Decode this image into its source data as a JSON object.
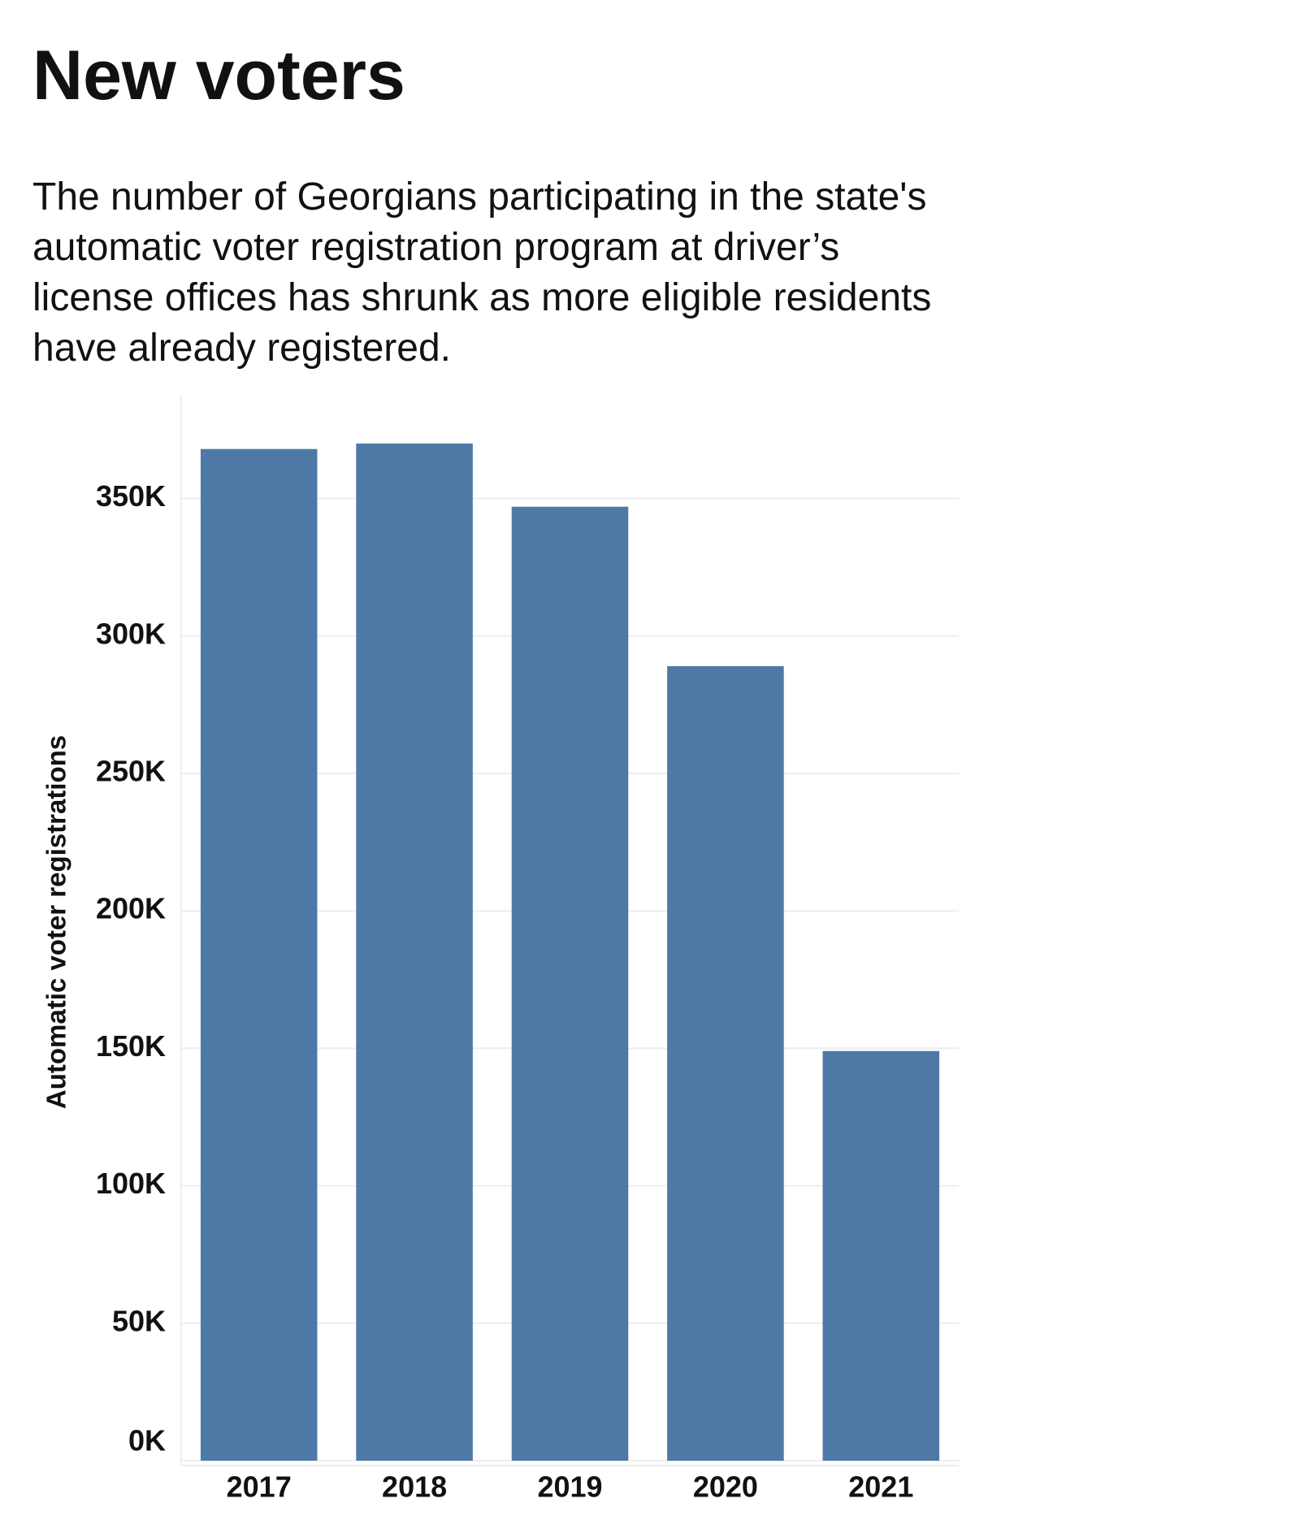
{
  "chart_data": {
    "type": "bar",
    "title": "New voters",
    "subtitle": "The number of Georgians participating in the state's automatic voter registration program at driver’s license offices has shrunk as more eligible residents have already registered.",
    "y_label": "Automatic voter registrations",
    "categories": [
      "2017",
      "2018",
      "2019",
      "2020",
      "2021"
    ],
    "values": [
      368000,
      370000,
      347000,
      289000,
      149000
    ],
    "color": "#4e79a7",
    "ylim": [
      0,
      388000
    ],
    "yticks": [
      {
        "value": 0,
        "label": "0K"
      },
      {
        "value": 50000,
        "label": "50K"
      },
      {
        "value": 100000,
        "label": "100K"
      },
      {
        "value": 150000,
        "label": "150K"
      },
      {
        "value": 200000,
        "label": "200K"
      },
      {
        "value": 250000,
        "label": "250K"
      },
      {
        "value": 300000,
        "label": "300K"
      },
      {
        "value": 350000,
        "label": "350K"
      }
    ],
    "grid": true
  }
}
